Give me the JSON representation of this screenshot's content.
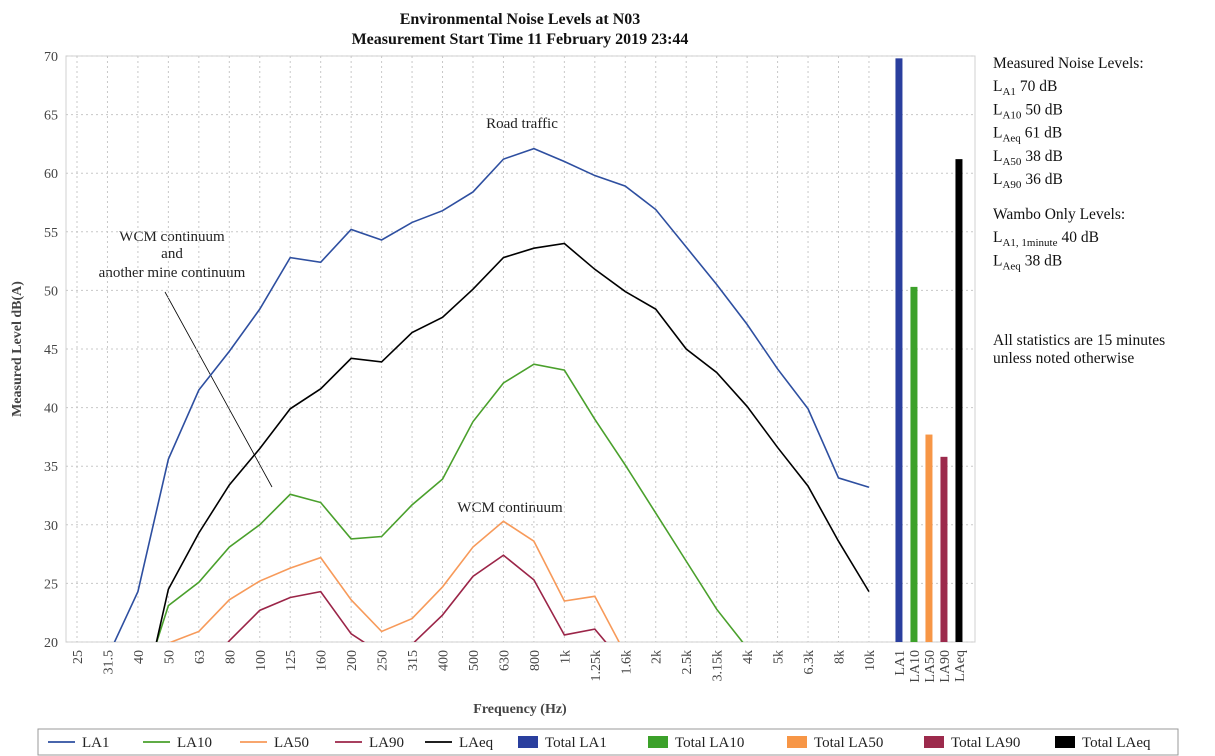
{
  "chart_data": {
    "type": "combo",
    "title": [
      "Environmental Noise Levels at N03",
      "Measurement Start Time 11 February 2019 23:44"
    ],
    "x_label": "Frequency (Hz)",
    "y_label": "Measured Level dB(A)",
    "categories": [
      "25",
      "31.5",
      "40",
      "50",
      "63",
      "80",
      "100",
      "125",
      "160",
      "200",
      "250",
      "315",
      "400",
      "500",
      "630",
      "800",
      "1k",
      "1.25k",
      "1.6k",
      "2k",
      "2.5k",
      "3.15k",
      "4k",
      "5k",
      "6.3k",
      "8k",
      "10k",
      "LA1",
      "LA10",
      "LA50",
      "LA90",
      "LAeq"
    ],
    "ylim": [
      20,
      70
    ],
    "yticks": [
      20,
      25,
      30,
      35,
      40,
      45,
      50,
      55,
      60,
      65,
      70
    ],
    "grid": true,
    "legend": "bottom",
    "series": [
      {
        "name": "LA1",
        "kind": "line",
        "color": "#2e4fa0",
        "values": [
          null,
          18.7,
          24.3,
          35.6,
          41.5,
          44.8,
          48.4,
          52.8,
          52.4,
          55.2,
          54.3,
          55.8,
          56.8,
          58.4,
          61.2,
          62.1,
          61,
          59.8,
          58.9,
          56.9,
          53.7,
          50.5,
          47.1,
          43.3,
          39.9,
          34,
          33.2,
          null,
          null,
          null,
          null,
          null
        ]
      },
      {
        "name": "LA10",
        "kind": "line",
        "color": "#4aa02c",
        "values": [
          null,
          null,
          15,
          23.1,
          25.1,
          28.1,
          30,
          32.6,
          31.9,
          28.8,
          29,
          31.7,
          33.9,
          38.8,
          42.1,
          43.7,
          43.2,
          39,
          35.1,
          31,
          26.9,
          22.8,
          19.5,
          null,
          null,
          null,
          null,
          null,
          null,
          null,
          null,
          null
        ]
      },
      {
        "name": "LA50",
        "kind": "line",
        "color": "#f79a5a",
        "values": [
          null,
          null,
          null,
          19.9,
          20.9,
          23.6,
          25.2,
          26.3,
          27.2,
          23.6,
          20.9,
          22,
          24.7,
          28.1,
          30.3,
          28.6,
          23.5,
          23.9,
          19,
          null,
          null,
          null,
          null,
          null,
          null,
          null,
          null,
          null,
          null,
          null,
          null,
          null
        ]
      },
      {
        "name": "LA90",
        "kind": "line",
        "color": "#9b2548",
        "values": [
          null,
          null,
          null,
          null,
          17,
          20.1,
          22.7,
          23.8,
          24.3,
          20.7,
          19,
          19.8,
          22.3,
          25.6,
          27.4,
          25.3,
          20.6,
          21.1,
          18,
          null,
          null,
          null,
          null,
          null,
          null,
          null,
          null,
          null,
          null,
          null,
          null,
          null
        ]
      },
      {
        "name": "LAeq",
        "kind": "line",
        "color": "#000000",
        "values": [
          null,
          null,
          13,
          24.5,
          29.3,
          33.4,
          36.5,
          39.9,
          41.6,
          44.2,
          43.9,
          46.4,
          47.7,
          50.1,
          52.8,
          53.6,
          54,
          51.8,
          49.9,
          48.4,
          45,
          43,
          40.1,
          36.6,
          33.3,
          28.6,
          24.3,
          null,
          null,
          null,
          null,
          null
        ]
      },
      {
        "name": "Total LA1",
        "kind": "bar",
        "color": "#2a3f9e",
        "values": [
          null,
          null,
          null,
          null,
          null,
          null,
          null,
          null,
          null,
          null,
          null,
          null,
          null,
          null,
          null,
          null,
          null,
          null,
          null,
          null,
          null,
          null,
          null,
          null,
          null,
          null,
          null,
          69.8,
          null,
          null,
          null,
          null
        ]
      },
      {
        "name": "Total LA10",
        "kind": "bar",
        "color": "#3ca12a",
        "values": [
          null,
          null,
          null,
          null,
          null,
          null,
          null,
          null,
          null,
          null,
          null,
          null,
          null,
          null,
          null,
          null,
          null,
          null,
          null,
          null,
          null,
          null,
          null,
          null,
          null,
          null,
          null,
          null,
          50.3,
          null,
          null,
          null
        ]
      },
      {
        "name": "Total LA50",
        "kind": "bar",
        "color": "#f79646",
        "values": [
          null,
          null,
          null,
          null,
          null,
          null,
          null,
          null,
          null,
          null,
          null,
          null,
          null,
          null,
          null,
          null,
          null,
          null,
          null,
          null,
          null,
          null,
          null,
          null,
          null,
          null,
          null,
          null,
          null,
          37.7,
          null,
          null
        ]
      },
      {
        "name": "Total LA90",
        "kind": "bar",
        "color": "#9c2a4c",
        "values": [
          null,
          null,
          null,
          null,
          null,
          null,
          null,
          null,
          null,
          null,
          null,
          null,
          null,
          null,
          null,
          null,
          null,
          null,
          null,
          null,
          null,
          null,
          null,
          null,
          null,
          null,
          null,
          null,
          null,
          null,
          35.8,
          null
        ]
      },
      {
        "name": "Total LAeq",
        "kind": "bar",
        "color": "#000000",
        "values": [
          null,
          null,
          null,
          null,
          null,
          null,
          null,
          null,
          null,
          null,
          null,
          null,
          null,
          null,
          null,
          null,
          null,
          null,
          null,
          null,
          null,
          null,
          null,
          null,
          null,
          null,
          null,
          null,
          null,
          null,
          null,
          61.2
        ]
      }
    ],
    "annotations": {
      "road": "Road traffic",
      "wcm": "WCM continuum",
      "wcm_other": [
        "WCM continuum",
        "and",
        "another mine continuum"
      ]
    },
    "side_panel": {
      "measured_heading": "Measured Noise Levels:",
      "measured": [
        {
          "symbol": "L",
          "subscript": "A1",
          "text": "70 dB"
        },
        {
          "symbol": "L",
          "subscript": "A10",
          "text": "50 dB"
        },
        {
          "symbol": "L",
          "subscript": "Aeq",
          "text": "61 dB"
        },
        {
          "symbol": "L",
          "subscript": "A50",
          "text": "38 dB"
        },
        {
          "symbol": "L",
          "subscript": "A90",
          "text": "36 dB"
        }
      ],
      "wambo_heading": "Wambo Only Levels:",
      "wambo": [
        {
          "symbol": "L",
          "subscript": "A1, 1minute",
          "text": "40 dB"
        },
        {
          "symbol": "L",
          "subscript": "Aeq",
          "text": "38 dB"
        }
      ],
      "note": [
        "All statistics are 15 minutes",
        "unless noted otherwise"
      ]
    }
  }
}
